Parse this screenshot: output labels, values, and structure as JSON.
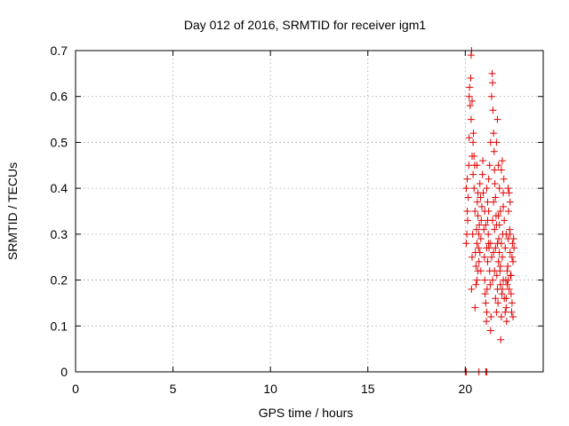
{
  "chart_data": {
    "type": "scatter",
    "title": "Day 012 of 2016, SRMTID for receiver igm1",
    "xlabel": "GPS time / hours",
    "ylabel": "SRMTID / TECUs",
    "xlim": [
      0,
      24
    ],
    "ylim": [
      0,
      0.7
    ],
    "x_ticks": [
      0,
      5,
      10,
      15,
      20
    ],
    "x_tick_labels": [
      "0",
      "5",
      "10",
      "15",
      "20"
    ],
    "y_ticks": [
      0,
      0.1,
      0.2,
      0.3,
      0.4,
      0.5,
      0.6,
      0.7
    ],
    "y_tick_labels": [
      "0",
      "0.1",
      "0.2",
      "0.3",
      "0.4",
      "0.5",
      "0.6",
      "0.7"
    ],
    "grid": true,
    "marker": "plus",
    "point_color": "#e00000",
    "series": [
      {
        "points": [
          [
            20.0,
            0.0
          ],
          [
            20.05,
            0.0
          ],
          [
            20.7,
            0.0
          ],
          [
            21.05,
            0.0
          ],
          [
            21.1,
            0.0
          ],
          [
            20.05,
            0.28
          ],
          [
            20.08,
            0.3
          ],
          [
            20.1,
            0.35
          ],
          [
            20.1,
            0.42
          ],
          [
            20.12,
            0.33
          ],
          [
            20.15,
            0.38
          ],
          [
            20.05,
            0.4
          ],
          [
            20.18,
            0.45
          ],
          [
            20.2,
            0.6
          ],
          [
            20.22,
            0.62
          ],
          [
            20.25,
            0.58
          ],
          [
            20.28,
            0.64
          ],
          [
            20.3,
            0.69
          ],
          [
            20.32,
            0.7
          ],
          [
            20.35,
            0.59
          ],
          [
            20.32,
            0.18
          ],
          [
            20.35,
            0.25
          ],
          [
            20.38,
            0.3
          ],
          [
            20.4,
            0.5
          ],
          [
            20.42,
            0.52
          ],
          [
            20.45,
            0.47
          ],
          [
            20.48,
            0.45
          ],
          [
            20.5,
            0.35
          ],
          [
            20.52,
            0.26
          ],
          [
            20.55,
            0.23
          ],
          [
            20.55,
            0.19
          ],
          [
            20.58,
            0.31
          ],
          [
            20.6,
            0.28
          ],
          [
            20.62,
            0.37
          ],
          [
            20.65,
            0.34
          ],
          [
            20.68,
            0.27
          ],
          [
            20.7,
            0.24
          ],
          [
            20.72,
            0.32
          ],
          [
            20.75,
            0.41
          ],
          [
            20.78,
            0.38
          ],
          [
            20.5,
            0.14
          ],
          [
            20.6,
            0.2
          ],
          [
            20.65,
            0.22
          ],
          [
            20.8,
            0.29
          ],
          [
            20.82,
            0.33
          ],
          [
            20.85,
            0.36
          ],
          [
            20.88,
            0.43
          ],
          [
            20.9,
            0.46
          ],
          [
            20.92,
            0.39
          ],
          [
            20.95,
            0.31
          ],
          [
            20.98,
            0.25
          ],
          [
            21.0,
            0.2
          ],
          [
            21.02,
            0.17
          ],
          [
            21.05,
            0.15
          ],
          [
            21.08,
            0.11
          ],
          [
            21.1,
            0.13
          ],
          [
            21.12,
            0.18
          ],
          [
            21.15,
            0.24
          ],
          [
            21.18,
            0.3
          ],
          [
            21.2,
            0.35
          ],
          [
            21.22,
            0.27
          ],
          [
            21.25,
            0.22
          ],
          [
            21.28,
            0.19
          ],
          [
            21.3,
            0.09
          ],
          [
            21.32,
            0.12
          ],
          [
            21.1,
            0.4
          ],
          [
            21.15,
            0.33
          ],
          [
            21.2,
            0.28
          ],
          [
            21.25,
            0.45
          ],
          [
            21.3,
            0.5
          ],
          [
            21.35,
            0.6
          ],
          [
            21.38,
            0.65
          ],
          [
            21.4,
            0.63
          ],
          [
            21.42,
            0.57
          ],
          [
            21.45,
            0.52
          ],
          [
            21.48,
            0.48
          ],
          [
            21.5,
            0.44
          ],
          [
            21.52,
            0.41
          ],
          [
            21.55,
            0.38
          ],
          [
            21.58,
            0.34
          ],
          [
            21.4,
            0.2
          ],
          [
            21.45,
            0.26
          ],
          [
            21.5,
            0.31
          ],
          [
            21.55,
            0.16
          ],
          [
            21.6,
            0.13
          ],
          [
            21.62,
            0.21
          ],
          [
            21.65,
            0.18
          ],
          [
            21.68,
            0.15
          ],
          [
            21.7,
            0.24
          ],
          [
            21.72,
            0.29
          ],
          [
            21.75,
            0.32
          ],
          [
            21.78,
            0.22
          ],
          [
            21.8,
            0.19
          ],
          [
            21.82,
            0.07
          ],
          [
            21.85,
            0.12
          ],
          [
            21.88,
            0.17
          ],
          [
            21.9,
            0.25
          ],
          [
            21.92,
            0.3
          ],
          [
            21.95,
            0.36
          ],
          [
            21.98,
            0.42
          ],
          [
            21.6,
            0.5
          ],
          [
            21.65,
            0.55
          ],
          [
            21.7,
            0.45
          ],
          [
            21.75,
            0.4
          ],
          [
            21.8,
            0.35
          ],
          [
            21.85,
            0.44
          ],
          [
            21.9,
            0.46
          ],
          [
            21.95,
            0.39
          ],
          [
            22.0,
            0.33
          ],
          [
            22.05,
            0.27
          ],
          [
            22.08,
            0.2
          ],
          [
            22.1,
            0.14
          ],
          [
            22.12,
            0.11
          ],
          [
            22.15,
            0.19
          ],
          [
            22.18,
            0.23
          ],
          [
            22.2,
            0.29
          ],
          [
            22.22,
            0.35
          ],
          [
            22.25,
            0.39
          ],
          [
            22.28,
            0.31
          ],
          [
            22.3,
            0.26
          ],
          [
            22.32,
            0.21
          ],
          [
            22.35,
            0.17
          ],
          [
            22.38,
            0.13
          ],
          [
            22.4,
            0.25
          ],
          [
            22.42,
            0.28
          ],
          [
            22.45,
            0.24
          ],
          [
            22.48,
            0.29
          ],
          [
            22.5,
            0.27
          ],
          [
            22.2,
            0.4
          ],
          [
            22.3,
            0.37
          ],
          [
            22.25,
            0.18
          ],
          [
            22.35,
            0.21
          ],
          [
            22.4,
            0.15
          ],
          [
            22.45,
            0.12
          ],
          [
            22.1,
            0.3
          ],
          [
            20.2,
            0.51
          ],
          [
            20.3,
            0.55
          ],
          [
            20.35,
            0.47
          ],
          [
            20.4,
            0.43
          ],
          [
            20.45,
            0.4
          ],
          [
            20.6,
            0.45
          ],
          [
            20.65,
            0.39
          ],
          [
            20.7,
            0.3
          ],
          [
            20.75,
            0.26
          ],
          [
            20.8,
            0.22
          ],
          [
            21.0,
            0.35
          ],
          [
            21.05,
            0.32
          ],
          [
            21.1,
            0.27
          ],
          [
            21.15,
            0.37
          ],
          [
            21.2,
            0.42
          ],
          [
            21.3,
            0.28
          ],
          [
            21.35,
            0.25
          ],
          [
            21.4,
            0.33
          ],
          [
            21.45,
            0.37
          ],
          [
            21.5,
            0.22
          ],
          [
            21.55,
            0.27
          ],
          [
            21.6,
            0.32
          ],
          [
            21.65,
            0.28
          ],
          [
            21.7,
            0.34
          ],
          [
            21.75,
            0.26
          ],
          [
            21.8,
            0.23
          ],
          [
            21.85,
            0.28
          ],
          [
            21.9,
            0.18
          ],
          [
            21.95,
            0.2
          ],
          [
            22.0,
            0.16
          ],
          [
            22.05,
            0.13
          ],
          [
            22.1,
            0.16
          ],
          [
            22.15,
            0.22
          ],
          [
            22.2,
            0.2
          ],
          [
            22.3,
            0.3
          ]
        ]
      }
    ]
  }
}
